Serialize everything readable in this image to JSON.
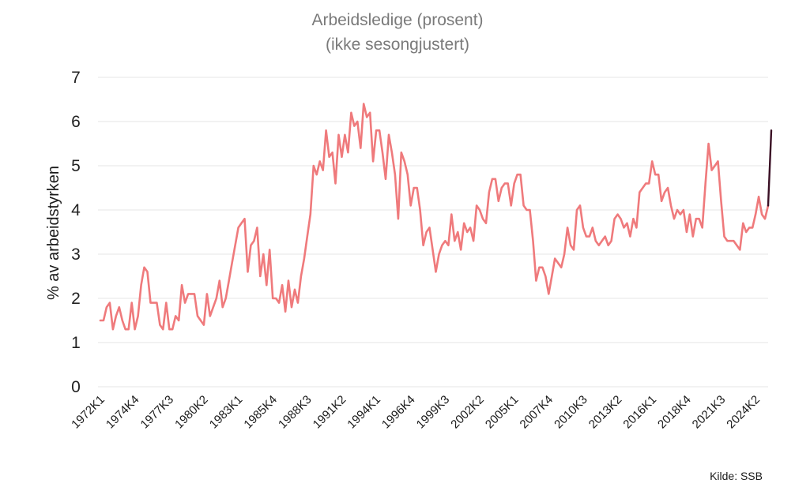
{
  "chart_data": {
    "type": "line",
    "title": "Arbeidsledige (prosent)",
    "subtitle": "(ikke sesongjustert)",
    "ylabel": "% av arbeidstyrken",
    "xlabel": "",
    "source": "Kilde: SSB",
    "ylim": [
      0,
      7
    ],
    "yticks": [
      0,
      1,
      2,
      3,
      4,
      5,
      6,
      7
    ],
    "grid": true,
    "xtick_labels": [
      "1972K1",
      "1974K4",
      "1977K3",
      "1980K2",
      "1983K1",
      "1985K4",
      "1988K3",
      "1991K2",
      "1994K1",
      "1996K4",
      "1999K3",
      "2002K2",
      "2005K1",
      "2007K4",
      "2010K3",
      "2013K2",
      "2016K1",
      "2018K4",
      "2021K3",
      "2024K2"
    ],
    "start_quarter": "1972K1",
    "series": [
      {
        "color": "#ef7a7c",
        "values": [
          1.5,
          1.5,
          1.8,
          1.9,
          1.3,
          1.6,
          1.8,
          1.5,
          1.3,
          1.3,
          1.9,
          1.3,
          1.6,
          2.3,
          2.7,
          2.6,
          1.9,
          1.9,
          1.9,
          1.4,
          1.3,
          1.9,
          1.3,
          1.3,
          1.6,
          1.5,
          2.3,
          1.9,
          2.1,
          2.1,
          2.1,
          1.6,
          1.5,
          1.4,
          2.1,
          1.6,
          1.8,
          2.0,
          2.4,
          1.8,
          2.0,
          2.4,
          2.8,
          3.2,
          3.6,
          3.7,
          3.8,
          2.6,
          3.2,
          3.3,
          3.6,
          2.5,
          3.0,
          2.3,
          3.1,
          2.0,
          2.0,
          1.9,
          2.3,
          1.7,
          2.4,
          1.8,
          2.2,
          1.9,
          2.5,
          2.9,
          3.4,
          3.9,
          5.0,
          4.8,
          5.1,
          4.9,
          5.8,
          5.2,
          5.3,
          4.6,
          5.7,
          5.2,
          5.7,
          5.3,
          6.2,
          5.9,
          6.0,
          5.4,
          6.4,
          6.1,
          6.2,
          5.1,
          5.8,
          5.8,
          5.3,
          4.7,
          5.7,
          5.3,
          4.8,
          3.8,
          5.3,
          5.1,
          4.8,
          4.1,
          4.5,
          4.5,
          4.0,
          3.2,
          3.5,
          3.6,
          3.1,
          2.6,
          3.0,
          3.2,
          3.3,
          3.2,
          3.9,
          3.3,
          3.5,
          3.1,
          3.7,
          3.5,
          3.6,
          3.3,
          4.1,
          4.0,
          3.8,
          3.7,
          4.4,
          4.7,
          4.7,
          4.2,
          4.5,
          4.6,
          4.6,
          4.1,
          4.6,
          4.8,
          4.8,
          4.1,
          4.0,
          4.0,
          3.3,
          2.4,
          2.7,
          2.7,
          2.5,
          2.1,
          2.5,
          2.9,
          2.8,
          2.7,
          3.0,
          3.6,
          3.2,
          3.1,
          4.0,
          4.1,
          3.6,
          3.4,
          3.4,
          3.6,
          3.3,
          3.2,
          3.3,
          3.4,
          3.2,
          3.3,
          3.8,
          3.9,
          3.8,
          3.6,
          3.7,
          3.4,
          3.8,
          3.6,
          4.4,
          4.5,
          4.6,
          4.6,
          5.1,
          4.8,
          4.8,
          4.2,
          4.4,
          4.5,
          4.1,
          3.8,
          4.0,
          3.9,
          4.0,
          3.5,
          3.9,
          3.4,
          3.8,
          3.8,
          3.6,
          4.6,
          5.5,
          4.9,
          5.0,
          5.1,
          4.2,
          3.4,
          3.3,
          3.3,
          3.3,
          3.2,
          3.1,
          3.7,
          3.5,
          3.6,
          3.6,
          3.9,
          4.3,
          3.9,
          3.8,
          4.1
        ]
      },
      {
        "color": "#3a0f24",
        "values": [
          4.1,
          5.8
        ]
      }
    ]
  }
}
